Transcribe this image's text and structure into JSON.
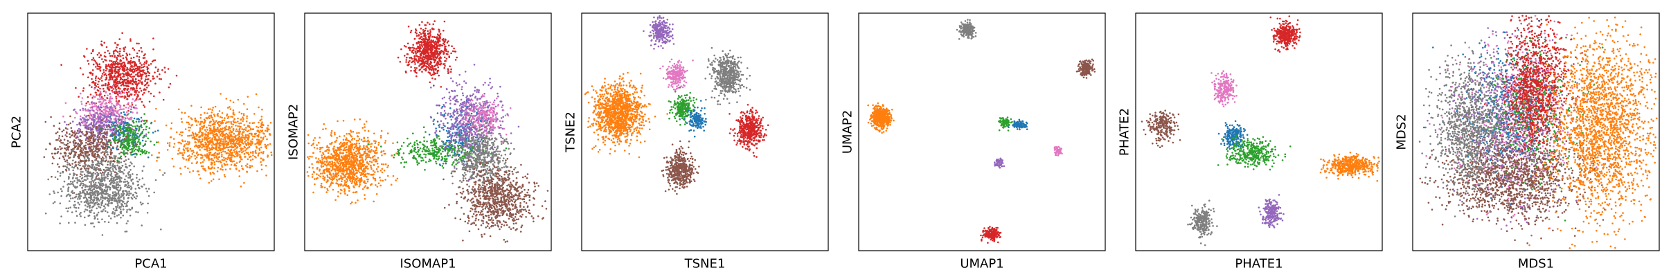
{
  "chart_data": [
    {
      "type": "scatter",
      "xlabel": "PCA1",
      "ylabel": "PCA2",
      "xlim": [
        0,
        100
      ],
      "ylim": [
        0,
        100
      ],
      "ticks": false,
      "grid": false,
      "series": [
        {
          "color": "#d62728",
          "cx": 38,
          "cy": 74,
          "sx": 7,
          "sy": 6,
          "n": 700
        },
        {
          "color": "#ff7f0e",
          "cx": 80,
          "cy": 46,
          "sx": 10,
          "sy": 6,
          "n": 1100
        },
        {
          "color": "#e377c2",
          "cx": 32,
          "cy": 58,
          "sx": 6,
          "sy": 4,
          "n": 350
        },
        {
          "color": "#9467bd",
          "cx": 30,
          "cy": 53,
          "sx": 6,
          "sy": 4,
          "n": 300
        },
        {
          "color": "#1f77b4",
          "cx": 40,
          "cy": 49,
          "sx": 4,
          "sy": 4,
          "n": 150
        },
        {
          "color": "#2ca02c",
          "cx": 42,
          "cy": 47,
          "sx": 4,
          "sy": 4,
          "n": 250
        },
        {
          "color": "#8c564b",
          "cx": 24,
          "cy": 43,
          "sx": 7,
          "sy": 5,
          "n": 500
        },
        {
          "color": "#7f7f7f",
          "cx": 30,
          "cy": 26,
          "sx": 8,
          "sy": 7,
          "n": 900
        }
      ]
    },
    {
      "type": "scatter",
      "xlabel": "ISOMAP1",
      "ylabel": "ISOMAP2",
      "xlim": [
        0,
        100
      ],
      "ylim": [
        0,
        100
      ],
      "ticks": false,
      "grid": false,
      "series": [
        {
          "color": "#d62728",
          "cx": 50,
          "cy": 84,
          "sx": 4,
          "sy": 5,
          "n": 650
        },
        {
          "color": "#ff7f0e",
          "cx": 18,
          "cy": 37,
          "sx": 7,
          "sy": 6,
          "n": 1000
        },
        {
          "color": "#2ca02c",
          "cx": 55,
          "cy": 42,
          "sx": 9,
          "sy": 3,
          "n": 350
        },
        {
          "color": "#1f77b4",
          "cx": 63,
          "cy": 50,
          "sx": 5,
          "sy": 5,
          "n": 200
        },
        {
          "color": "#9467bd",
          "cx": 67,
          "cy": 55,
          "sx": 6,
          "sy": 8,
          "n": 550
        },
        {
          "color": "#e377c2",
          "cx": 72,
          "cy": 56,
          "sx": 4,
          "sy": 4,
          "n": 200
        },
        {
          "color": "#7f7f7f",
          "cx": 72,
          "cy": 39,
          "sx": 5,
          "sy": 6,
          "n": 500
        },
        {
          "color": "#8c564b",
          "cx": 78,
          "cy": 22,
          "sx": 7,
          "sy": 6,
          "n": 800
        }
      ]
    },
    {
      "type": "scatter",
      "xlabel": "TSNE1",
      "ylabel": "TSNE2",
      "xlim": [
        0,
        100
      ],
      "ylim": [
        0,
        100
      ],
      "ticks": false,
      "grid": false,
      "series": [
        {
          "color": "#9467bd",
          "cx": 32,
          "cy": 92,
          "sx": 2,
          "sy": 2.5,
          "n": 250
        },
        {
          "color": "#e377c2",
          "cx": 38,
          "cy": 74,
          "sx": 2,
          "sy": 2.5,
          "n": 200
        },
        {
          "color": "#7f7f7f",
          "cx": 59,
          "cy": 74,
          "sx": 3,
          "sy": 4,
          "n": 500
        },
        {
          "color": "#ff7f0e",
          "cx": 15,
          "cy": 58,
          "sx": 5,
          "sy": 6,
          "n": 1100
        },
        {
          "color": "#2ca02c",
          "cx": 41,
          "cy": 60,
          "sx": 2,
          "sy": 2.5,
          "n": 220
        },
        {
          "color": "#1f77b4",
          "cx": 47,
          "cy": 55,
          "sx": 1.6,
          "sy": 2,
          "n": 150
        },
        {
          "color": "#d62728",
          "cx": 68,
          "cy": 51,
          "sx": 2.6,
          "sy": 3.5,
          "n": 450
        },
        {
          "color": "#8c564b",
          "cx": 40,
          "cy": 34,
          "sx": 2.6,
          "sy": 3.5,
          "n": 450
        }
      ]
    },
    {
      "type": "scatter",
      "xlabel": "UMAP1",
      "ylabel": "UMAP2",
      "xlim": [
        0,
        100
      ],
      "ylim": [
        0,
        100
      ],
      "ticks": false,
      "grid": false,
      "series": [
        {
          "color": "#7f7f7f",
          "cx": 44,
          "cy": 93,
          "sx": 1.5,
          "sy": 1.5,
          "n": 200
        },
        {
          "color": "#8c564b",
          "cx": 92,
          "cy": 77,
          "sx": 1.5,
          "sy": 1.5,
          "n": 200
        },
        {
          "color": "#ff7f0e",
          "cx": 9,
          "cy": 56,
          "sx": 1.8,
          "sy": 2.2,
          "n": 500
        },
        {
          "color": "#2ca02c",
          "cx": 59,
          "cy": 54,
          "sx": 1.2,
          "sy": 1,
          "n": 80
        },
        {
          "color": "#1f77b4",
          "cx": 65,
          "cy": 53,
          "sx": 1.5,
          "sy": 0.8,
          "n": 100
        },
        {
          "color": "#9467bd",
          "cx": 57,
          "cy": 37,
          "sx": 0.9,
          "sy": 1,
          "n": 60
        },
        {
          "color": "#e377c2",
          "cx": 81,
          "cy": 42,
          "sx": 0.8,
          "sy": 1,
          "n": 50
        },
        {
          "color": "#d62728",
          "cx": 54,
          "cy": 7,
          "sx": 1.6,
          "sy": 1.3,
          "n": 200
        }
      ]
    },
    {
      "type": "scatter",
      "xlabel": "PHATE1",
      "ylabel": "PHATE2",
      "xlim": [
        0,
        100
      ],
      "ylim": [
        0,
        100
      ],
      "ticks": false,
      "grid": false,
      "series": [
        {
          "color": "#d62728",
          "cx": 61,
          "cy": 91,
          "sx": 2.5,
          "sy": 2.5,
          "n": 350
        },
        {
          "color": "#e377c2",
          "cx": 36,
          "cy": 68,
          "sx": 2,
          "sy": 3,
          "n": 220
        },
        {
          "color": "#8c564b",
          "cx": 11,
          "cy": 53,
          "sx": 2.6,
          "sy": 3,
          "n": 220
        },
        {
          "color": "#1f77b4",
          "cx": 40,
          "cy": 48,
          "sx": 2.2,
          "sy": 2.5,
          "n": 220
        },
        {
          "color": "#2ca02c",
          "cx": 47,
          "cy": 41,
          "sx": 5,
          "sy": 3,
          "n": 330
        },
        {
          "color": "#ff7f0e",
          "cx": 87,
          "cy": 36,
          "sx": 5,
          "sy": 2,
          "n": 450
        },
        {
          "color": "#9467bd",
          "cx": 55,
          "cy": 16,
          "sx": 1.8,
          "sy": 3,
          "n": 220
        },
        {
          "color": "#7f7f7f",
          "cx": 27,
          "cy": 12,
          "sx": 2,
          "sy": 3,
          "n": 250
        }
      ]
    },
    {
      "type": "scatter",
      "xlabel": "MDS1",
      "ylabel": "MDS2",
      "xlim": [
        0,
        100
      ],
      "ylim": [
        0,
        100
      ],
      "ticks": false,
      "grid": false,
      "series": [
        {
          "color": "#e377c2",
          "cx": 40,
          "cy": 55,
          "sx": 11,
          "sy": 17,
          "n": 700
        },
        {
          "color": "#9467bd",
          "cx": 42,
          "cy": 55,
          "sx": 11,
          "sy": 17,
          "n": 700
        },
        {
          "color": "#1f77b4",
          "cx": 38,
          "cy": 58,
          "sx": 10,
          "sy": 14,
          "n": 400
        },
        {
          "color": "#2ca02c",
          "cx": 50,
          "cy": 58,
          "sx": 9,
          "sy": 14,
          "n": 400
        },
        {
          "color": "#d62728",
          "cx": 50,
          "cy": 70,
          "sx": 6,
          "sy": 13,
          "n": 1000
        },
        {
          "color": "#8c564b",
          "cx": 40,
          "cy": 30,
          "sx": 14,
          "sy": 9,
          "n": 1200
        },
        {
          "color": "#7f7f7f",
          "cx": 23,
          "cy": 52,
          "sx": 7,
          "sy": 13,
          "n": 1000
        },
        {
          "color": "#ff7f0e",
          "cx": 76,
          "cy": 52,
          "sx": 10,
          "sy": 19,
          "n": 2000
        }
      ]
    }
  ]
}
